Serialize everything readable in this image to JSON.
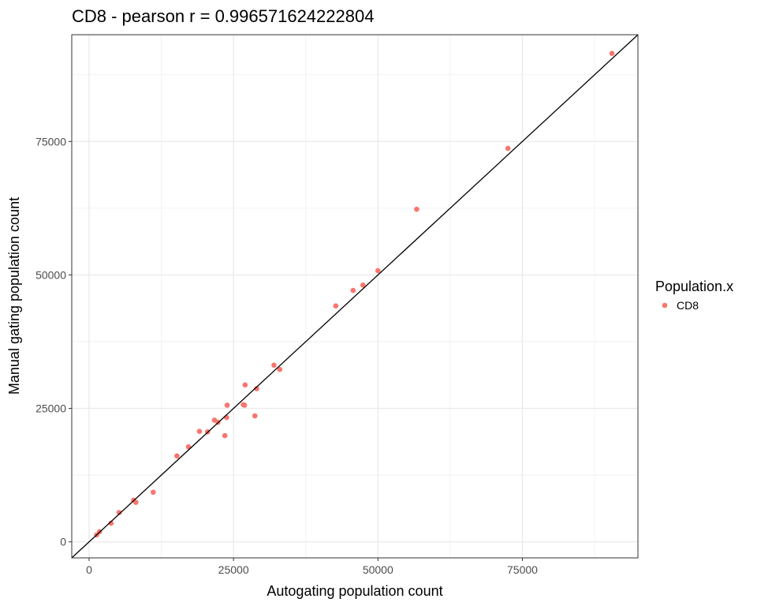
{
  "chart_data": {
    "type": "scatter",
    "title": "CD8 - pearson r = 0.996571624222804",
    "xlabel": "Autogating population count",
    "ylabel": "Manual gating population count",
    "xlim": [
      -3000,
      95000
    ],
    "ylim": [
      -3000,
      95000
    ],
    "x_ticks": [
      0,
      25000,
      50000,
      75000
    ],
    "y_ticks": [
      0,
      25000,
      50000,
      75000
    ],
    "x_tick_labels": [
      "0",
      "25000",
      "50000",
      "75000"
    ],
    "y_tick_labels": [
      "0",
      "25000",
      "50000",
      "75000"
    ],
    "grid": true,
    "reference_line": "y = x",
    "legend": {
      "title": "Population.x",
      "placement": "right",
      "entries": [
        "CD8"
      ]
    },
    "point_color": "#F8766D",
    "series": [
      {
        "name": "CD8",
        "points": [
          [
            1300,
            1300
          ],
          [
            1800,
            1900
          ],
          [
            3800,
            3500
          ],
          [
            5200,
            5500
          ],
          [
            7700,
            7800
          ],
          [
            8100,
            7400
          ],
          [
            11100,
            9300
          ],
          [
            15200,
            16100
          ],
          [
            17200,
            17800
          ],
          [
            19100,
            20700
          ],
          [
            20500,
            20600
          ],
          [
            21700,
            22800
          ],
          [
            22300,
            22400
          ],
          [
            23500,
            19900
          ],
          [
            23800,
            23300
          ],
          [
            23900,
            25600
          ],
          [
            26700,
            25700
          ],
          [
            26900,
            25600
          ],
          [
            27000,
            29400
          ],
          [
            28700,
            23600
          ],
          [
            29000,
            28700
          ],
          [
            32000,
            33100
          ],
          [
            33000,
            32300
          ],
          [
            42700,
            44200
          ],
          [
            45700,
            47100
          ],
          [
            47400,
            48100
          ],
          [
            50000,
            50800
          ],
          [
            56700,
            62300
          ],
          [
            72500,
            73700
          ],
          [
            90500,
            91500
          ]
        ]
      }
    ]
  }
}
